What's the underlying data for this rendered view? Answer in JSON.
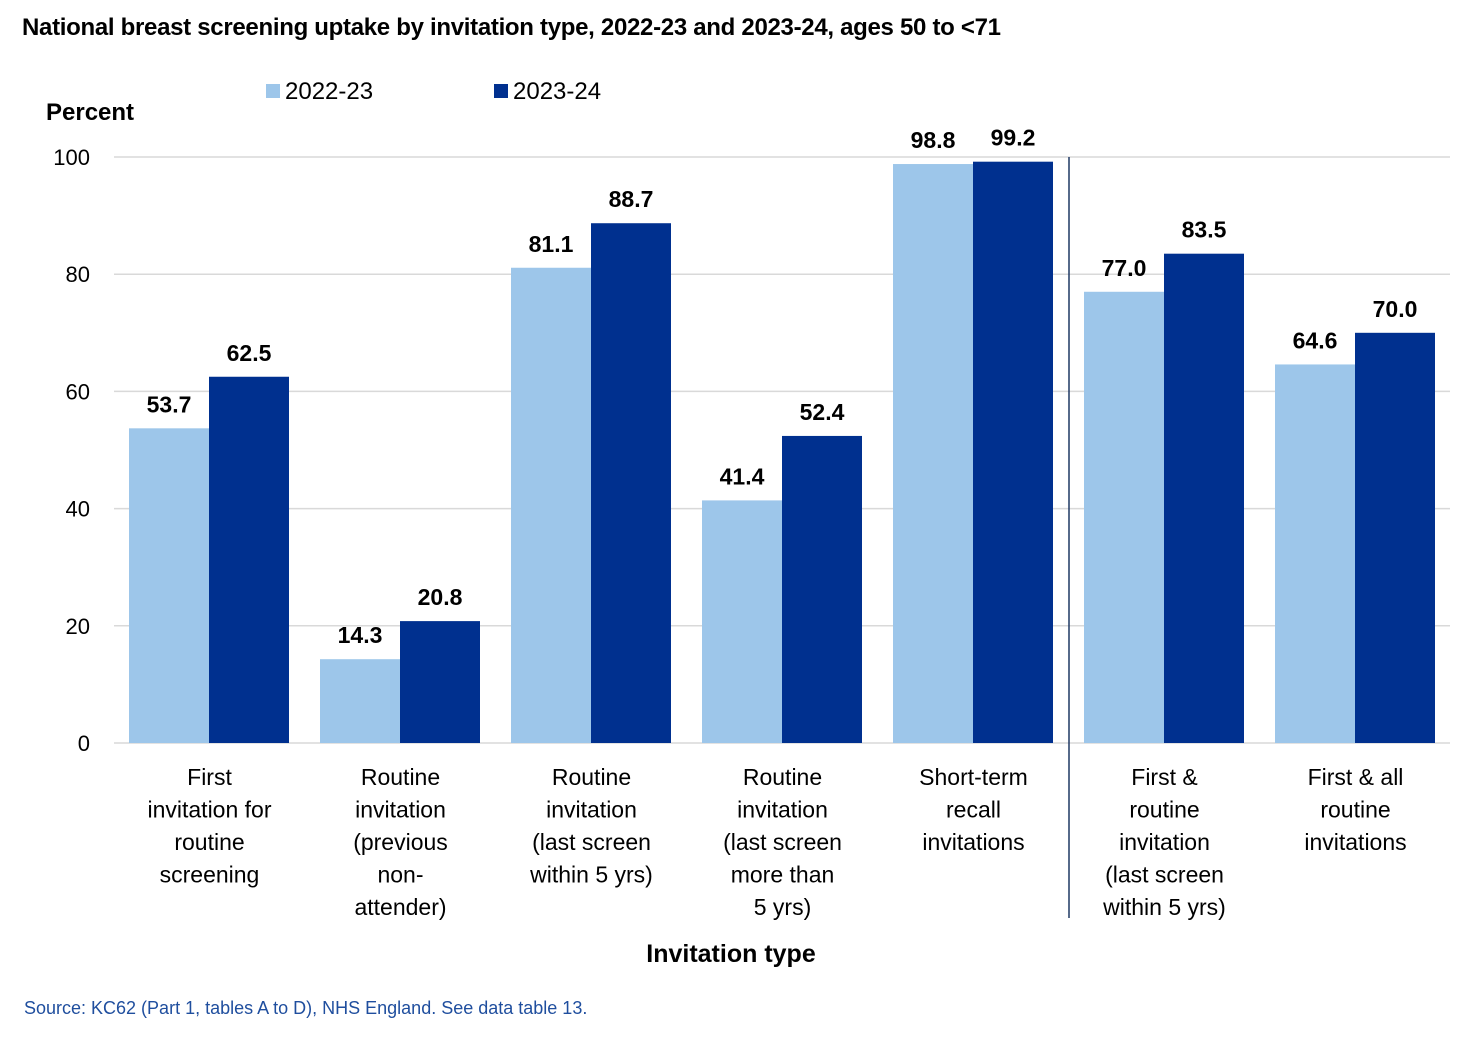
{
  "title": "National breast screening uptake by invitation type, 2022-23 and 2023-24, ages 50 to <71",
  "source": "Source: KC62 (Part 1, tables A to D), NHS England. See data table 13.",
  "colors": {
    "series_2022_23": "#9dc6ea",
    "series_2023_24": "#00308f",
    "grid": "#d9d9d9",
    "source_text": "#1f4e9e"
  },
  "chart_data": {
    "type": "bar",
    "title": "National breast screening uptake by invitation type, 2022-23 and 2023-24, ages 50 to <71",
    "xlabel": "Invitation type",
    "ylabel": "Percent",
    "ylim": [
      0,
      100
    ],
    "yticks": [
      "0",
      "20",
      "40",
      "60",
      "80",
      "100"
    ],
    "grid": true,
    "legend_position": "top",
    "categories": [
      [
        "First",
        "invitation for",
        "routine",
        "screening"
      ],
      [
        "Routine",
        "invitation",
        "(previous",
        "non-",
        "attender)"
      ],
      [
        "Routine",
        "invitation",
        "(last screen",
        "within 5 yrs)"
      ],
      [
        "Routine",
        "invitation",
        "(last screen",
        "more than",
        "5 yrs)"
      ],
      [
        "Short-term",
        "recall",
        "invitations"
      ],
      [
        "First &",
        "routine",
        "invitation",
        "(last screen",
        "within 5 yrs)"
      ],
      [
        "First & all",
        "routine",
        "invitations"
      ]
    ],
    "series": [
      {
        "name": "2022-23",
        "values": [
          53.7,
          14.3,
          81.1,
          41.4,
          98.8,
          77.0,
          64.6
        ],
        "labels": [
          "53.7",
          "14.3",
          "81.1",
          "41.4",
          "98.8",
          "77.0",
          "64.6"
        ]
      },
      {
        "name": "2023-24",
        "values": [
          62.5,
          20.8,
          88.7,
          52.4,
          99.2,
          83.5,
          70.0
        ],
        "labels": [
          "62.5",
          "20.8",
          "88.7",
          "52.4",
          "99.2",
          "83.5",
          "70.0"
        ]
      }
    ],
    "divider_after_category": 5
  }
}
